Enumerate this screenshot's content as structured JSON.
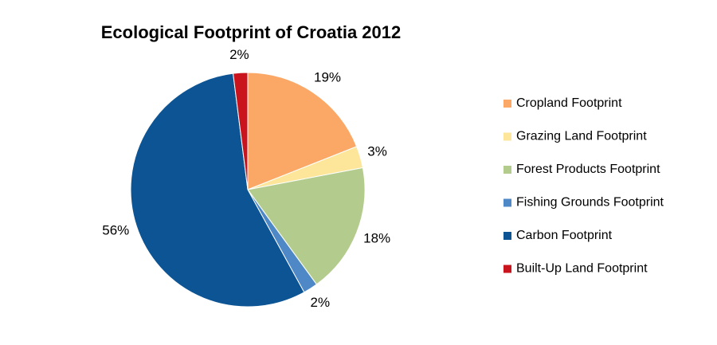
{
  "chart_data": {
    "type": "pie",
    "title": "Ecological Footprint of Croatia 2012",
    "categories": [
      "Cropland Footprint",
      "Grazing Land Footprint",
      "Forest Products Footprint",
      "Fishing Grounds Footprint",
      "Carbon Footprint",
      "Built-Up Land Footprint"
    ],
    "values": [
      19,
      3,
      18,
      2,
      56,
      2
    ],
    "value_labels": [
      "19%",
      "3%",
      "18%",
      "2%",
      "56%",
      "2%"
    ],
    "colors": [
      "#fba766",
      "#fde699",
      "#b3cc8e",
      "#4f88c6",
      "#0c5494",
      "#c9141e"
    ],
    "legend": "right"
  }
}
